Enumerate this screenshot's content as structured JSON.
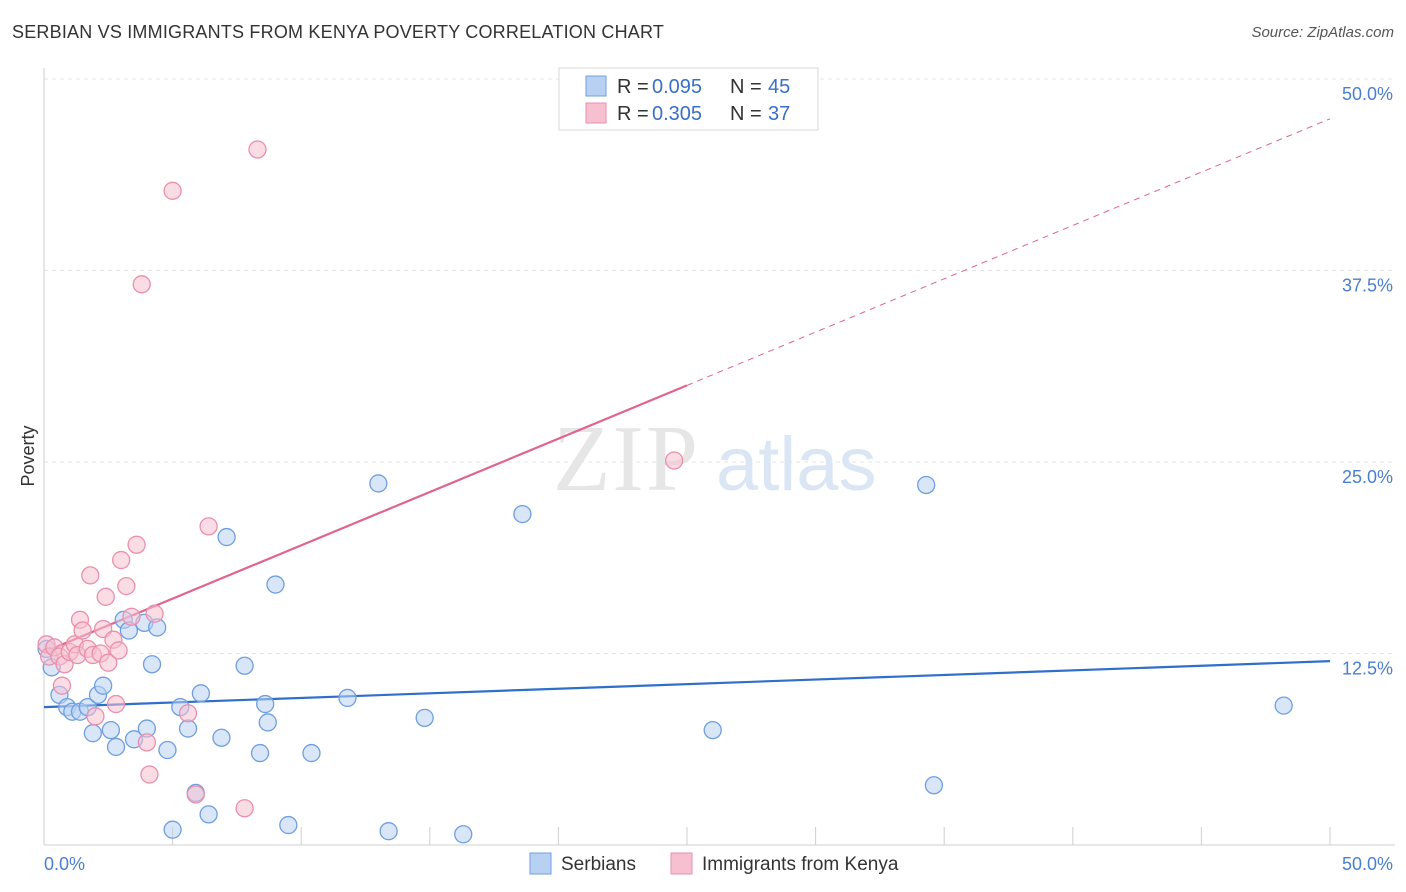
{
  "title": "SERBIAN VS IMMIGRANTS FROM KENYA POVERTY CORRELATION CHART",
  "source": "Source: ZipAtlas.com",
  "watermark": {
    "zip": "ZIP",
    "atlas": "atlas"
  },
  "chart_data": {
    "type": "scatter",
    "title": "SERBIAN VS IMMIGRANTS FROM KENYA POVERTY CORRELATION CHART",
    "ylabel": "Poverty",
    "xlabel": "",
    "xlim": [
      0,
      50
    ],
    "ylim": [
      0,
      50
    ],
    "x_tick_labels": [
      "0.0%",
      "50.0%"
    ],
    "y_ticks": [
      12.5,
      25.0,
      37.5,
      50.0
    ],
    "y_tick_labels": [
      "12.5%",
      "25.0%",
      "37.5%",
      "50.0%"
    ],
    "grid": true,
    "legend_position": "top-center",
    "colors": {
      "serbians_fill": "#b8d1f3",
      "serbians_stroke": "#6f9fe0",
      "serbians_line": "#2f6fcc",
      "kenya_fill": "#f6c0d0",
      "kenya_stroke": "#eb8fad",
      "kenya_line": "#e0648f",
      "tick_text": "#4a7fd0"
    },
    "legend": [
      {
        "r_label": "R = ",
        "r_value": "0.095",
        "n_label": "N = ",
        "n_value": "45"
      },
      {
        "r_label": "R = ",
        "r_value": "0.305",
        "n_label": "N = ",
        "n_value": "37"
      }
    ],
    "series": [
      {
        "name": "Serbians",
        "trend": {
          "x0": 0,
          "y0": 9.0,
          "x1": 50,
          "y1": 12.0
        },
        "points": [
          [
            0.3,
            11.6
          ],
          [
            0.6,
            9.8
          ],
          [
            0.9,
            9.0
          ],
          [
            1.1,
            8.7
          ],
          [
            1.4,
            8.7
          ],
          [
            1.7,
            9.0
          ],
          [
            1.9,
            7.3
          ],
          [
            2.1,
            9.8
          ],
          [
            2.3,
            10.4
          ],
          [
            2.6,
            7.5
          ],
          [
            2.8,
            6.4
          ],
          [
            3.1,
            14.7
          ],
          [
            3.3,
            14.0
          ],
          [
            3.5,
            6.9
          ],
          [
            3.9,
            14.5
          ],
          [
            4.0,
            7.6
          ],
          [
            4.2,
            11.8
          ],
          [
            4.4,
            14.2
          ],
          [
            4.8,
            6.2
          ],
          [
            5.0,
            1.0
          ],
          [
            5.3,
            9.0
          ],
          [
            5.6,
            7.6
          ],
          [
            5.9,
            3.4
          ],
          [
            6.1,
            9.9
          ],
          [
            6.4,
            2.0
          ],
          [
            6.9,
            7.0
          ],
          [
            7.1,
            20.1
          ],
          [
            7.8,
            11.7
          ],
          [
            8.4,
            6.0
          ],
          [
            8.6,
            9.2
          ],
          [
            8.7,
            8.0
          ],
          [
            9.0,
            17.0
          ],
          [
            9.5,
            1.3
          ],
          [
            10.4,
            6.0
          ],
          [
            11.8,
            9.6
          ],
          [
            13.0,
            23.6
          ],
          [
            13.4,
            0.9
          ],
          [
            14.8,
            8.3
          ],
          [
            16.3,
            0.7
          ],
          [
            18.6,
            21.6
          ],
          [
            26.0,
            7.5
          ],
          [
            34.3,
            23.5
          ],
          [
            34.6,
            3.9
          ],
          [
            48.2,
            9.1
          ],
          [
            0.1,
            12.8
          ]
        ]
      },
      {
        "name": "Immigrants from Kenya",
        "trend": {
          "x0": 0,
          "y0": 12.6,
          "x1": 25,
          "y1": 30.0,
          "dash_x1": 50,
          "dash_y1": 47.4
        },
        "points": [
          [
            0.1,
            13.1
          ],
          [
            0.2,
            12.3
          ],
          [
            0.4,
            12.9
          ],
          [
            0.6,
            12.3
          ],
          [
            0.7,
            10.4
          ],
          [
            0.8,
            11.8
          ],
          [
            1.0,
            12.6
          ],
          [
            1.2,
            13.1
          ],
          [
            1.3,
            12.4
          ],
          [
            1.4,
            14.7
          ],
          [
            1.5,
            14.0
          ],
          [
            1.7,
            12.8
          ],
          [
            1.8,
            17.6
          ],
          [
            1.9,
            12.4
          ],
          [
            2.0,
            8.4
          ],
          [
            2.2,
            12.5
          ],
          [
            2.3,
            14.1
          ],
          [
            2.4,
            16.2
          ],
          [
            2.5,
            11.9
          ],
          [
            2.7,
            13.4
          ],
          [
            2.8,
            9.2
          ],
          [
            2.9,
            12.7
          ],
          [
            3.0,
            18.6
          ],
          [
            3.2,
            16.9
          ],
          [
            3.4,
            14.9
          ],
          [
            3.6,
            19.6
          ],
          [
            3.8,
            36.6
          ],
          [
            4.0,
            6.7
          ],
          [
            4.1,
            4.6
          ],
          [
            4.3,
            15.1
          ],
          [
            5.0,
            42.7
          ],
          [
            5.6,
            8.6
          ],
          [
            5.9,
            3.3
          ],
          [
            6.4,
            20.8
          ],
          [
            7.8,
            2.4
          ],
          [
            8.3,
            45.4
          ],
          [
            24.5,
            25.1
          ]
        ]
      }
    ]
  }
}
